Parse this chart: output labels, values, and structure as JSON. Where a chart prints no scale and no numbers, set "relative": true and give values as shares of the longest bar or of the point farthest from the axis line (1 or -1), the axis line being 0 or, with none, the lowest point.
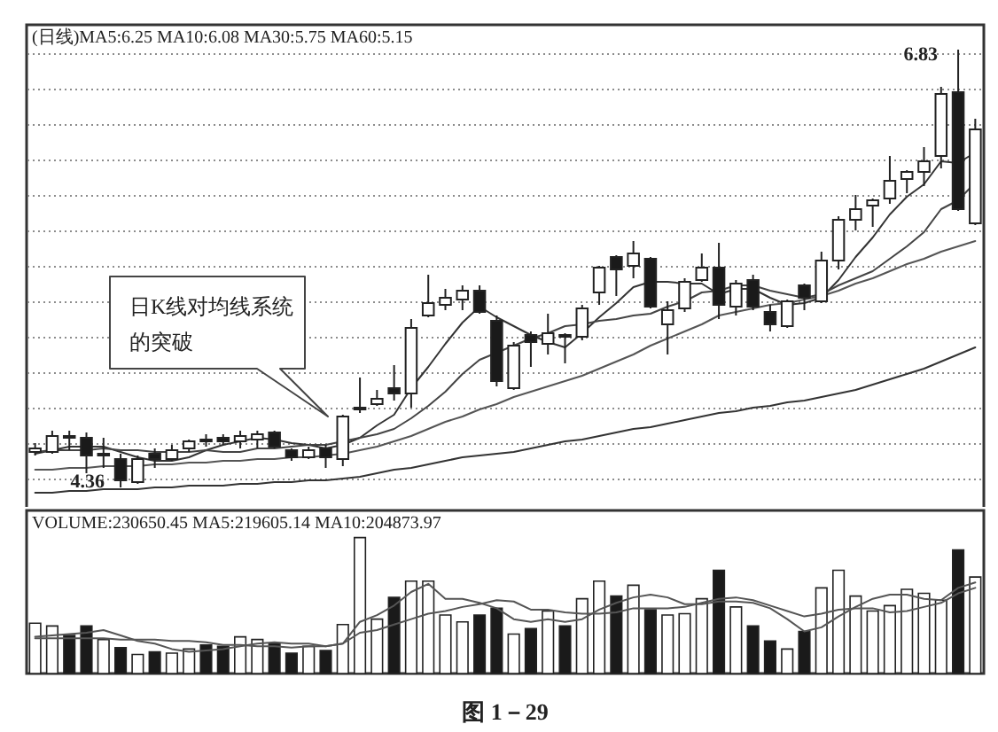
{
  "chart_data": [
    {
      "type": "candlestick",
      "title": "(日线)MA5:6.25 MA10:6.08 MA30:5.75 MA60:5.15",
      "categories": [
        null,
        null,
        null,
        null,
        null,
        null,
        null,
        null,
        null,
        null,
        null,
        null,
        null,
        null,
        null,
        null,
        null,
        null,
        null,
        null,
        null,
        null,
        null,
        null,
        null,
        null,
        null,
        null,
        null,
        null,
        null,
        null,
        null,
        null,
        null,
        null,
        null,
        null,
        null,
        null,
        null,
        null,
        null,
        null,
        null,
        null,
        null,
        null,
        null,
        null,
        null,
        null,
        null,
        null,
        null,
        null
      ],
      "ohlc": [
        [
          4.56,
          4.61,
          4.54,
          4.58
        ],
        [
          4.56,
          4.68,
          4.55,
          4.65
        ],
        [
          4.65,
          4.68,
          4.57,
          4.64
        ],
        [
          4.64,
          4.67,
          4.44,
          4.54
        ],
        [
          4.54,
          4.64,
          4.47,
          4.55
        ],
        [
          4.52,
          4.55,
          4.36,
          4.4
        ],
        [
          4.39,
          4.54,
          4.38,
          4.52
        ],
        [
          4.55,
          4.58,
          4.47,
          4.52
        ],
        [
          4.52,
          4.6,
          4.51,
          4.57
        ],
        [
          4.58,
          4.63,
          4.56,
          4.62
        ],
        [
          4.63,
          4.66,
          4.59,
          4.62
        ],
        [
          4.64,
          4.66,
          4.6,
          4.62
        ],
        [
          4.62,
          4.68,
          4.58,
          4.65
        ],
        [
          4.63,
          4.68,
          4.58,
          4.66
        ],
        [
          4.67,
          4.68,
          4.58,
          4.59
        ],
        [
          4.57,
          4.58,
          4.51,
          4.53
        ],
        [
          4.53,
          4.59,
          4.52,
          4.57
        ],
        [
          4.58,
          4.6,
          4.47,
          4.53
        ],
        [
          4.52,
          4.77,
          4.48,
          4.76
        ],
        [
          4.8,
          4.98,
          4.78,
          4.81
        ],
        [
          4.83,
          4.91,
          4.82,
          4.86
        ],
        [
          4.92,
          5.05,
          4.85,
          4.89
        ],
        [
          4.89,
          5.31,
          4.81,
          5.26
        ],
        [
          5.33,
          5.56,
          5.32,
          5.4
        ],
        [
          5.39,
          5.48,
          5.36,
          5.43
        ],
        [
          5.42,
          5.5,
          5.36,
          5.47
        ],
        [
          5.47,
          5.5,
          5.34,
          5.35
        ],
        [
          5.3,
          5.33,
          4.93,
          4.96
        ],
        [
          4.92,
          5.18,
          4.91,
          5.16
        ],
        [
          5.22,
          5.24,
          5.04,
          5.18
        ],
        [
          5.17,
          5.34,
          5.11,
          5.23
        ],
        [
          5.22,
          5.23,
          5.06,
          5.21
        ],
        [
          5.21,
          5.39,
          5.19,
          5.37
        ],
        [
          5.46,
          5.61,
          5.39,
          5.6
        ],
        [
          5.66,
          5.67,
          5.44,
          5.59
        ],
        [
          5.61,
          5.75,
          5.54,
          5.68
        ],
        [
          5.65,
          5.66,
          5.37,
          5.38
        ],
        [
          5.28,
          5.41,
          5.11,
          5.36
        ],
        [
          5.37,
          5.54,
          5.35,
          5.52
        ],
        [
          5.53,
          5.68,
          5.52,
          5.6
        ],
        [
          5.6,
          5.74,
          5.31,
          5.39
        ],
        [
          5.38,
          5.53,
          5.33,
          5.51
        ],
        [
          5.53,
          5.56,
          5.36,
          5.38
        ],
        [
          5.35,
          5.39,
          5.24,
          5.28
        ],
        [
          5.27,
          5.42,
          5.26,
          5.41
        ],
        [
          5.5,
          5.51,
          5.36,
          5.43
        ],
        [
          5.41,
          5.69,
          5.4,
          5.64
        ],
        [
          5.64,
          5.89,
          5.59,
          5.87
        ],
        [
          5.87,
          6.01,
          5.81,
          5.93
        ],
        [
          5.95,
          5.99,
          5.83,
          5.98
        ],
        [
          5.99,
          6.23,
          5.96,
          6.09
        ],
        [
          6.1,
          6.15,
          6.02,
          6.14
        ],
        [
          6.14,
          6.28,
          6.06,
          6.2
        ],
        [
          6.23,
          6.62,
          6.16,
          6.58
        ],
        [
          6.59,
          6.83,
          5.92,
          5.93
        ],
        [
          5.85,
          6.44,
          5.84,
          6.38
        ]
      ],
      "colors": [
        "#ffffff",
        "#ffffff",
        "#1a1a1a",
        "#1a1a1a",
        "#ffffff",
        "#1a1a1a",
        "#ffffff",
        "#1a1a1a",
        "#ffffff",
        "#ffffff",
        "#1a1a1a",
        "#1a1a1a",
        "#ffffff",
        "#ffffff",
        "#1a1a1a",
        "#1a1a1a",
        "#ffffff",
        "#1a1a1a",
        "#ffffff",
        "#ffffff",
        "#ffffff",
        "#1a1a1a",
        "#ffffff",
        "#ffffff",
        "#ffffff",
        "#ffffff",
        "#1a1a1a",
        "#1a1a1a",
        "#ffffff",
        "#1a1a1a",
        "#ffffff",
        "#1a1a1a",
        "#ffffff",
        "#ffffff",
        "#1a1a1a",
        "#ffffff",
        "#1a1a1a",
        "#ffffff",
        "#ffffff",
        "#ffffff",
        "#1a1a1a",
        "#ffffff",
        "#1a1a1a",
        "#1a1a1a",
        "#ffffff",
        "#1a1a1a",
        "#ffffff",
        "#ffffff",
        "#ffffff",
        "#ffffff",
        "#ffffff",
        "#ffffff",
        "#ffffff",
        "#ffffff",
        "#1a1a1a",
        "#ffffff"
      ],
      "series": [
        {
          "type": "line",
          "color": "#333333",
          "values": [
            4.55,
            4.57,
            4.59,
            4.59,
            4.59,
            4.56,
            4.53,
            4.51,
            4.51,
            4.53,
            4.57,
            4.6,
            4.62,
            4.64,
            4.63,
            4.61,
            4.6,
            4.58,
            4.6,
            4.64,
            4.71,
            4.77,
            4.92,
            5.04,
            5.17,
            5.29,
            5.38,
            5.32,
            5.27,
            5.22,
            5.18,
            5.15,
            5.23,
            5.32,
            5.4,
            5.49,
            5.52,
            5.52,
            5.51,
            5.51,
            5.45,
            5.48,
            5.48,
            5.43,
            5.39,
            5.4,
            5.43,
            5.53,
            5.66,
            5.77,
            5.9,
            6.0,
            6.07,
            6.2,
            6.19,
            6.25
          ]
        },
        {
          "type": "line",
          "color": "#444444",
          "values": [
            4.56,
            4.57,
            4.57,
            4.57,
            4.58,
            4.57,
            4.57,
            4.56,
            4.56,
            4.56,
            4.57,
            4.56,
            4.56,
            4.58,
            4.58,
            4.59,
            4.6,
            4.6,
            4.62,
            4.64,
            4.66,
            4.69,
            4.75,
            4.82,
            4.9,
            5.0,
            5.08,
            5.12,
            5.16,
            5.2,
            5.23,
            5.27,
            5.28,
            5.3,
            5.31,
            5.33,
            5.34,
            5.38,
            5.41,
            5.46,
            5.47,
            5.5,
            5.5,
            5.47,
            5.45,
            5.43,
            5.45,
            5.5,
            5.54,
            5.58,
            5.65,
            5.72,
            5.8,
            5.93,
            5.98,
            6.08
          ]
        },
        {
          "type": "line",
          "color": "#555555",
          "values": [
            4.46,
            4.46,
            4.47,
            4.47,
            4.48,
            4.48,
            4.48,
            4.49,
            4.49,
            4.5,
            4.5,
            4.51,
            4.51,
            4.52,
            4.52,
            4.53,
            4.53,
            4.54,
            4.55,
            4.57,
            4.59,
            4.62,
            4.65,
            4.69,
            4.73,
            4.76,
            4.8,
            4.83,
            4.87,
            4.9,
            4.93,
            4.96,
            4.99,
            5.03,
            5.07,
            5.11,
            5.16,
            5.2,
            5.24,
            5.28,
            5.33,
            5.35,
            5.37,
            5.39,
            5.4,
            5.42,
            5.44,
            5.47,
            5.51,
            5.54,
            5.58,
            5.62,
            5.65,
            5.69,
            5.72,
            5.75
          ]
        },
        {
          "type": "line",
          "color": "#333333",
          "values": [
            4.33,
            4.33,
            4.34,
            4.34,
            4.35,
            4.35,
            4.35,
            4.36,
            4.36,
            4.37,
            4.37,
            4.37,
            4.38,
            4.38,
            4.39,
            4.39,
            4.4,
            4.4,
            4.41,
            4.42,
            4.44,
            4.46,
            4.47,
            4.49,
            4.51,
            4.53,
            4.54,
            4.55,
            4.56,
            4.58,
            4.6,
            4.62,
            4.63,
            4.65,
            4.67,
            4.69,
            4.7,
            4.72,
            4.74,
            4.76,
            4.78,
            4.79,
            4.81,
            4.82,
            4.84,
            4.85,
            4.87,
            4.89,
            4.91,
            4.94,
            4.97,
            5.0,
            5.03,
            5.07,
            5.11,
            5.15
          ]
        }
      ],
      "ylim": [
        4.23,
        6.97
      ],
      "yticks": [
        {
          "value": 4.41,
          "label": null
        },
        {
          "value": 4.61,
          "label": null
        },
        {
          "value": 4.81,
          "label": null
        },
        {
          "value": 5.01,
          "label": null
        },
        {
          "value": 5.21,
          "label": null
        },
        {
          "value": 5.41,
          "label": null
        },
        {
          "value": 5.61,
          "label": null
        },
        {
          "value": 5.81,
          "label": null
        },
        {
          "value": 6.01,
          "label": null
        },
        {
          "value": 6.21,
          "label": null
        },
        {
          "value": 6.41,
          "label": null
        },
        {
          "value": 6.61,
          "label": null
        },
        {
          "value": 6.81,
          "label": null
        }
      ],
      "grid": "y",
      "tick_labels": false,
      "annotations": [
        "6.83",
        {
          "text": "4.36",
          "y": 4.36
        },
        "日K线对均线系统的突破"
      ]
    },
    {
      "type": "bar",
      "title": "VOLUME:230650.45 MA5:219605.14 MA10:204873.97",
      "relative": true,
      "categories": [
        null,
        null,
        null,
        null,
        null,
        null,
        null,
        null,
        null,
        null,
        null,
        null,
        null,
        null,
        null,
        null,
        null,
        null,
        null,
        null,
        null,
        null,
        null,
        null,
        null,
        null,
        null,
        null,
        null,
        null,
        null,
        null,
        null,
        null,
        null,
        null,
        null,
        null,
        null,
        null,
        null,
        null,
        null,
        null,
        null,
        null,
        null,
        null,
        null,
        null,
        null,
        null,
        null,
        null,
        null,
        null
      ],
      "values": [
        0.37,
        0.35,
        0.28,
        0.35,
        0.25,
        0.19,
        0.14,
        0.16,
        0.15,
        0.18,
        0.21,
        0.2,
        0.27,
        0.25,
        0.22,
        0.15,
        0.2,
        0.17,
        0.36,
        1,
        0.4,
        0.56,
        0.68,
        0.68,
        0.43,
        0.38,
        0.43,
        0.48,
        0.29,
        0.33,
        0.46,
        0.35,
        0.55,
        0.68,
        0.57,
        0.65,
        0.47,
        0.43,
        0.44,
        0.55,
        0.76,
        0.49,
        0.35,
        0.24,
        0.18,
        0.31,
        0.63,
        0.76,
        0.57,
        0.46,
        0.5,
        0.62,
        0.59,
        0.54,
        0.91,
        0.71
      ],
      "colors": [
        "#ffffff",
        "#ffffff",
        "#1a1a1a",
        "#1a1a1a",
        "#ffffff",
        "#1a1a1a",
        "#ffffff",
        "#1a1a1a",
        "#ffffff",
        "#ffffff",
        "#1a1a1a",
        "#1a1a1a",
        "#ffffff",
        "#ffffff",
        "#1a1a1a",
        "#1a1a1a",
        "#ffffff",
        "#1a1a1a",
        "#ffffff",
        "#ffffff",
        "#ffffff",
        "#1a1a1a",
        "#ffffff",
        "#ffffff",
        "#ffffff",
        "#ffffff",
        "#1a1a1a",
        "#1a1a1a",
        "#ffffff",
        "#1a1a1a",
        "#ffffff",
        "#1a1a1a",
        "#ffffff",
        "#ffffff",
        "#1a1a1a",
        "#ffffff",
        "#1a1a1a",
        "#ffffff",
        "#ffffff",
        "#ffffff",
        "#1a1a1a",
        "#ffffff",
        "#1a1a1a",
        "#1a1a1a",
        "#ffffff",
        "#1a1a1a",
        "#ffffff",
        "#ffffff",
        "#ffffff",
        "#ffffff",
        "#ffffff",
        "#ffffff",
        "#ffffff",
        "#ffffff",
        "#1a1a1a",
        "#ffffff"
      ],
      "series": [
        {
          "type": "line",
          "color": "#555555",
          "values": [
            0.27,
            0.28,
            0.29,
            0.3,
            0.32,
            0.28,
            0.24,
            0.22,
            0.18,
            0.16,
            0.17,
            0.18,
            0.2,
            0.22,
            0.23,
            0.22,
            0.22,
            0.2,
            0.22,
            0.38,
            0.43,
            0.5,
            0.6,
            0.66,
            0.55,
            0.55,
            0.52,
            0.48,
            0.4,
            0.38,
            0.4,
            0.38,
            0.4,
            0.47,
            0.52,
            0.56,
            0.58,
            0.56,
            0.51,
            0.51,
            0.53,
            0.53,
            0.52,
            0.48,
            0.4,
            0.31,
            0.34,
            0.42,
            0.49,
            0.55,
            0.58,
            0.58,
            0.55,
            0.54,
            0.63,
            0.67
          ]
        },
        {
          "type": "line",
          "color": "#555555",
          "values": [
            0.26,
            0.26,
            0.26,
            0.26,
            0.26,
            0.25,
            0.25,
            0.25,
            0.24,
            0.24,
            0.23,
            0.21,
            0.21,
            0.2,
            0.2,
            0.19,
            0.2,
            0.2,
            0.22,
            0.3,
            0.32,
            0.36,
            0.4,
            0.44,
            0.46,
            0.49,
            0.51,
            0.54,
            0.53,
            0.47,
            0.47,
            0.45,
            0.44,
            0.44,
            0.45,
            0.48,
            0.48,
            0.48,
            0.49,
            0.52,
            0.55,
            0.56,
            0.54,
            0.5,
            0.46,
            0.42,
            0.44,
            0.47,
            0.48,
            0.48,
            0.45,
            0.46,
            0.49,
            0.52,
            0.59,
            0.63
          ]
        }
      ],
      "tick_labels": false,
      "annotations": [
        "图 1－29"
      ]
    }
  ]
}
